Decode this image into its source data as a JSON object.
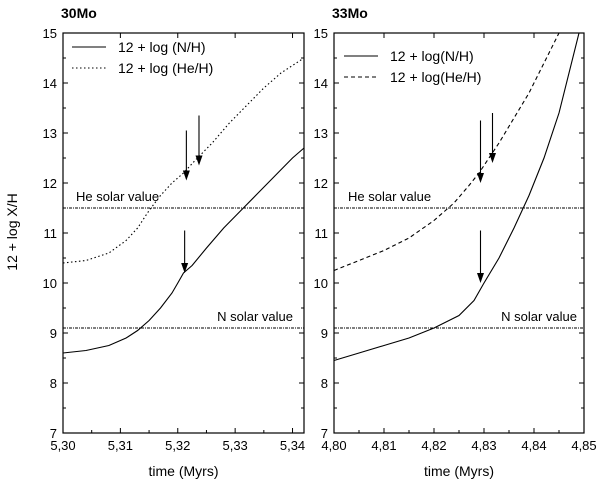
{
  "chart_data": [
    {
      "type": "line",
      "title": "30Mo",
      "xlabel": "time (Myrs)",
      "ylabel": "12 + log X/H",
      "xlim": [
        5.3,
        5.342
      ],
      "ylim": [
        7,
        15
      ],
      "x_ticks": [
        "5,30",
        "5,31",
        "5,32",
        "5,33",
        "5,34"
      ],
      "x_tick_values": [
        5.3,
        5.31,
        5.32,
        5.33,
        5.34
      ],
      "y_ticks": [
        "7",
        "8",
        "9",
        "10",
        "11",
        "12",
        "13",
        "14",
        "15"
      ],
      "y_tick_values": [
        7,
        8,
        9,
        10,
        11,
        12,
        13,
        14,
        15
      ],
      "legend_position": "top-left",
      "series": [
        {
          "name": "12 + log (N/H)",
          "style": "solid",
          "x": [
            5.3,
            5.304,
            5.308,
            5.311,
            5.313,
            5.315,
            5.317,
            5.319,
            5.32,
            5.321,
            5.3225,
            5.325,
            5.328,
            5.331,
            5.334,
            5.337,
            5.34,
            5.342
          ],
          "y": [
            8.6,
            8.65,
            8.75,
            8.9,
            9.05,
            9.25,
            9.5,
            9.8,
            10.0,
            10.2,
            10.35,
            10.7,
            11.1,
            11.45,
            11.8,
            12.15,
            12.5,
            12.7
          ]
        },
        {
          "name": "12 + log (He/H)",
          "style": "dotted",
          "x": [
            5.3,
            5.304,
            5.308,
            5.311,
            5.313,
            5.315,
            5.317,
            5.319,
            5.321,
            5.323,
            5.326,
            5.329,
            5.332,
            5.335,
            5.338,
            5.342
          ],
          "y": [
            10.4,
            10.45,
            10.6,
            10.85,
            11.1,
            11.45,
            11.75,
            12.0,
            12.2,
            12.45,
            12.8,
            13.2,
            13.55,
            13.9,
            14.2,
            14.5
          ]
        }
      ],
      "reference_lines": [
        {
          "label": "He solar value",
          "y": 11.5
        },
        {
          "label": "N solar value",
          "y": 9.1
        }
      ],
      "arrows": [
        {
          "x": 5.3215,
          "y_top": 13.05,
          "y_bottom": 12.05
        },
        {
          "x": 5.3237,
          "y_top": 13.35,
          "y_bottom": 12.35
        },
        {
          "x": 5.3212,
          "y_top": 11.05,
          "y_bottom": 10.2
        }
      ]
    },
    {
      "type": "line",
      "title": "33Mo",
      "xlabel": "time (Myrs)",
      "ylabel": "",
      "xlim": [
        4.8,
        4.85
      ],
      "ylim": [
        7,
        15
      ],
      "x_ticks": [
        "4,80",
        "4,81",
        "4,82",
        "4,83",
        "4,84",
        "4,85"
      ],
      "x_tick_values": [
        4.8,
        4.81,
        4.82,
        4.83,
        4.84,
        4.85
      ],
      "y_ticks": [
        "7",
        "8",
        "9",
        "10",
        "11",
        "12",
        "13",
        "14",
        "15"
      ],
      "y_tick_values": [
        7,
        8,
        9,
        10,
        11,
        12,
        13,
        14,
        15
      ],
      "legend_position": "top-left",
      "series": [
        {
          "name": "12 + log(N/H)",
          "style": "solid",
          "x": [
            4.8,
            4.805,
            4.81,
            4.815,
            4.82,
            4.825,
            4.828,
            4.83,
            4.833,
            4.836,
            4.839,
            4.842,
            4.845,
            4.847,
            4.849
          ],
          "y": [
            8.45,
            8.6,
            8.75,
            8.9,
            9.1,
            9.35,
            9.65,
            10.0,
            10.5,
            11.1,
            11.75,
            12.5,
            13.4,
            14.2,
            15.0
          ]
        },
        {
          "name": "12 + log(He/H)",
          "style": "dashed",
          "x": [
            4.8,
            4.805,
            4.81,
            4.815,
            4.82,
            4.824,
            4.827,
            4.829,
            4.831,
            4.833,
            4.836,
            4.839,
            4.842,
            4.845
          ],
          "y": [
            10.25,
            10.45,
            10.65,
            10.9,
            11.25,
            11.6,
            11.95,
            12.2,
            12.5,
            12.8,
            13.3,
            13.8,
            14.4,
            15.0
          ]
        }
      ],
      "reference_lines": [
        {
          "label": "He solar value",
          "y": 11.5
        },
        {
          "label": "N solar value",
          "y": 9.1
        }
      ],
      "arrows": [
        {
          "x": 4.8293,
          "y_top": 13.25,
          "y_bottom": 12.0
        },
        {
          "x": 4.8317,
          "y_top": 13.4,
          "y_bottom": 12.4
        },
        {
          "x": 4.8293,
          "y_top": 11.05,
          "y_bottom": 10.0
        }
      ]
    }
  ]
}
